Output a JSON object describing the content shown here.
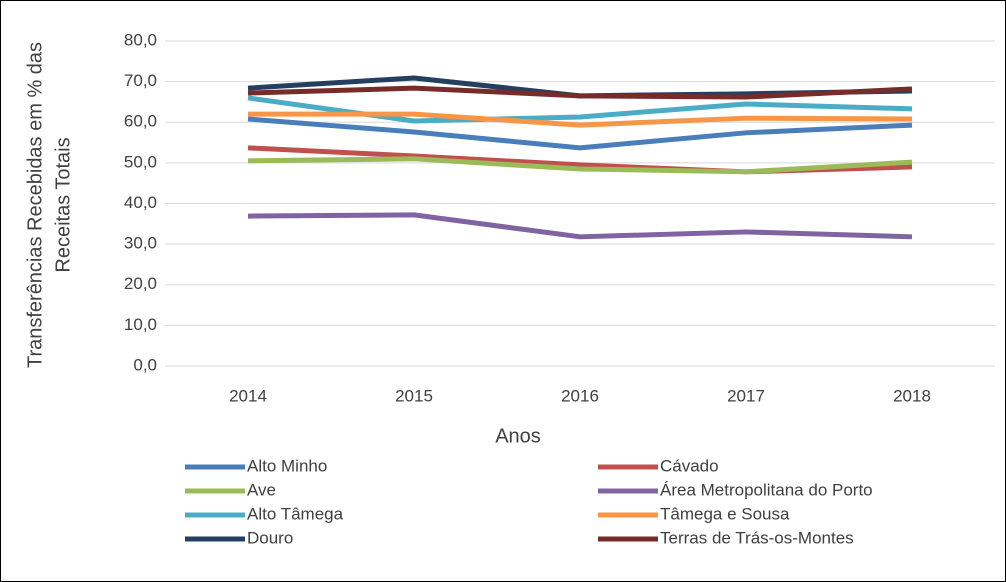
{
  "chart_data": {
    "type": "line",
    "y_label": [
      "Transferências Recebidas em % das",
      "Receitas Totais"
    ],
    "x_label": "Anos",
    "categories": [
      "2014",
      "2015",
      "2016",
      "2017",
      "2018"
    ],
    "ylim": [
      0,
      80
    ],
    "yticks": [
      {
        "value": 0,
        "label": "0,0"
      },
      {
        "value": 10,
        "label": "10,0"
      },
      {
        "value": 20,
        "label": "20,0"
      },
      {
        "value": 30,
        "label": "30,0"
      },
      {
        "value": 40,
        "label": "40,0"
      },
      {
        "value": 50,
        "label": "50,0"
      },
      {
        "value": 60,
        "label": "60,0"
      },
      {
        "value": 70,
        "label": "70,0"
      },
      {
        "value": 80,
        "label": "80,0"
      }
    ],
    "grid": true,
    "series": [
      {
        "name": "Alto Minho",
        "color": "#4a7ebb",
        "values": [
          60.8,
          57.6,
          53.7,
          57.4,
          59.3
        ]
      },
      {
        "name": "Cávado",
        "color": "#c0504d",
        "values": [
          53.7,
          51.7,
          49.5,
          47.8,
          49.0
        ]
      },
      {
        "name": "Ave",
        "color": "#9bbb59",
        "values": [
          50.5,
          51.0,
          48.5,
          47.8,
          50.2
        ]
      },
      {
        "name": "Área Metropolitana do Porto",
        "color": "#8064a2",
        "values": [
          36.9,
          37.2,
          31.8,
          33.0,
          31.8
        ]
      },
      {
        "name": "Alto Tâmega",
        "color": "#4bacc6",
        "values": [
          66.0,
          60.3,
          61.3,
          64.5,
          63.3
        ]
      },
      {
        "name": "Tâmega e Sousa",
        "color": "#f79646",
        "values": [
          62.0,
          62.0,
          59.3,
          61.0,
          60.8
        ]
      },
      {
        "name": "Douro",
        "color": "#243f60",
        "values": [
          68.4,
          70.9,
          66.5,
          67.0,
          67.7
        ]
      },
      {
        "name": "Terras de Trás-os-Montes",
        "color": "#772c2a",
        "values": [
          67.2,
          68.4,
          66.5,
          66.2,
          68.2
        ]
      }
    ]
  }
}
